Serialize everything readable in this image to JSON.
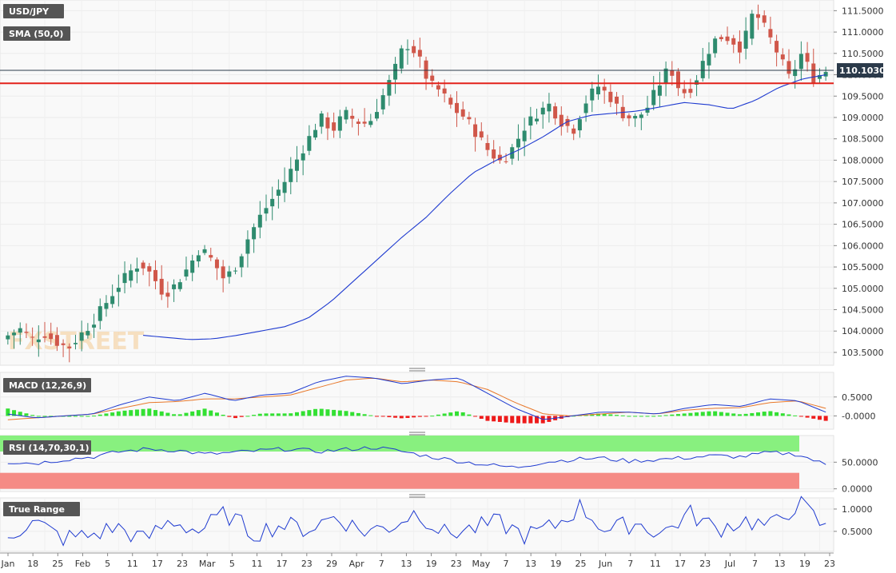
{
  "chart_data": [
    {
      "type": "candlestick",
      "symbol": "USD/JPY",
      "indicator_label": "SMA (50,0)",
      "current_price": "110.1030",
      "current_value": 110.103,
      "horizontal_line": 109.8,
      "ylim": [
        103.2,
        111.75
      ],
      "y_ticks": [
        "103.5000",
        "104.0000",
        "104.5000",
        "105.0000",
        "105.5000",
        "106.0000",
        "106.5000",
        "107.0000",
        "107.5000",
        "108.0000",
        "108.5000",
        "109.0000",
        "109.5000",
        "110.0000",
        "110.5000",
        "111.0000",
        "111.5000"
      ],
      "x_ticks": [
        "Jan",
        "18",
        "25",
        "Feb",
        "5",
        "11",
        "17",
        "23",
        "Mar",
        "5",
        "11",
        "17",
        "23",
        "29",
        "Apr",
        "7",
        "13",
        "19",
        "23",
        "May",
        "7",
        "13",
        "19",
        "25",
        "Jun",
        "7",
        "11",
        "17",
        "23",
        "Jul",
        "7",
        "13",
        "19",
        "23"
      ],
      "watermark": "FXSTREET",
      "close_anchors": [
        103.9,
        104.05,
        103.8,
        103.95,
        103.75,
        103.6,
        103.9,
        104.2,
        104.6,
        105.0,
        105.35,
        105.6,
        105.3,
        104.85,
        105.1,
        105.5,
        105.95,
        105.65,
        105.2,
        105.55,
        106.2,
        106.7,
        107.1,
        107.5,
        108.0,
        108.5,
        109.0,
        108.7,
        109.1,
        108.9,
        108.85,
        109.4,
        110.0,
        110.75,
        110.5,
        109.8,
        109.6,
        109.2,
        109.0,
        108.6,
        108.2,
        107.95,
        108.3,
        108.8,
        109.1,
        109.3,
        108.9,
        108.7,
        109.35,
        109.75,
        109.5,
        109.1,
        108.95,
        109.15,
        109.7,
        110.2,
        109.55,
        109.75,
        110.45,
        110.9,
        110.85,
        110.6,
        111.5,
        111.05,
        110.5,
        109.9,
        110.5,
        109.9,
        110.1
      ],
      "sma_anchors": [
        103.9,
        103.85,
        103.8,
        103.82,
        103.9,
        104.0,
        104.1,
        104.3,
        104.7,
        105.2,
        105.7,
        106.2,
        106.65,
        107.2,
        107.7,
        108.0,
        108.25,
        108.55,
        108.9,
        109.05,
        109.1,
        109.15,
        109.25,
        109.35,
        109.3,
        109.2,
        109.4,
        109.7,
        109.9,
        110.0
      ],
      "sma_start_day": 22
    },
    {
      "type": "line",
      "indicator_label": "MACD (12,26,9)",
      "ylim": [
        -0.35,
        1.15
      ],
      "y_ticks": [
        "0.5000",
        "-0.0000"
      ],
      "macd_anchors": [
        0.05,
        -0.05,
        0.0,
        0.05,
        0.3,
        0.5,
        0.4,
        0.6,
        0.4,
        0.55,
        0.6,
        0.9,
        1.05,
        1.0,
        0.85,
        0.95,
        1.0,
        0.6,
        0.2,
        -0.1,
        0.0,
        0.1,
        0.1,
        0.05,
        0.2,
        0.3,
        0.25,
        0.45,
        0.4,
        0.1
      ],
      "signal_anchors": [
        -0.1,
        -0.05,
        0.0,
        0.05,
        0.2,
        0.35,
        0.38,
        0.45,
        0.45,
        0.5,
        0.55,
        0.75,
        0.95,
        1.0,
        0.9,
        0.95,
        0.9,
        0.7,
        0.35,
        0.05,
        0.0,
        0.05,
        0.1,
        0.05,
        0.15,
        0.2,
        0.22,
        0.35,
        0.4,
        0.2
      ]
    },
    {
      "type": "line",
      "indicator_label": "RSI (14,70,30,1)",
      "ylim": [
        -5,
        100
      ],
      "y_ticks": [
        "50.0000",
        "0.0000"
      ],
      "bands": [
        70,
        30
      ],
      "rsi_anchors": [
        50,
        48,
        55,
        60,
        70,
        75,
        72,
        65,
        68,
        72,
        75,
        70,
        74,
        78,
        70,
        60,
        52,
        45,
        40,
        50,
        55,
        58,
        52,
        55,
        58,
        62,
        60,
        68,
        65,
        45
      ]
    },
    {
      "type": "line",
      "indicator_label": "True Range",
      "ylim": [
        0.05,
        1.25
      ],
      "y_ticks": [
        "1.0000",
        "0.5000"
      ],
      "tr_anchors": [
        0.45,
        0.7,
        0.35,
        0.4,
        0.6,
        0.3,
        0.75,
        0.5,
        0.9,
        0.45,
        0.65,
        0.55,
        0.85,
        0.5,
        0.6,
        0.95,
        0.45,
        0.55,
        0.7,
        0.4,
        0.6,
        1.05,
        0.5,
        0.7,
        0.45,
        0.9,
        0.55,
        0.75,
        0.6,
        1.15,
        0.55
      ]
    }
  ],
  "colors": {
    "bull": "#2e8b6e",
    "bear": "#d0574a",
    "sma": "#1f3bd0",
    "hline": "#e3221b",
    "macd": "#1f3bd0",
    "signal": "#e8782a",
    "hist_pos": "#33e033",
    "hist_neg": "#ee1a1a",
    "rsi_upper": "#88f07f",
    "rsi_lower": "#f58b85",
    "tag_bg": "#555555"
  }
}
